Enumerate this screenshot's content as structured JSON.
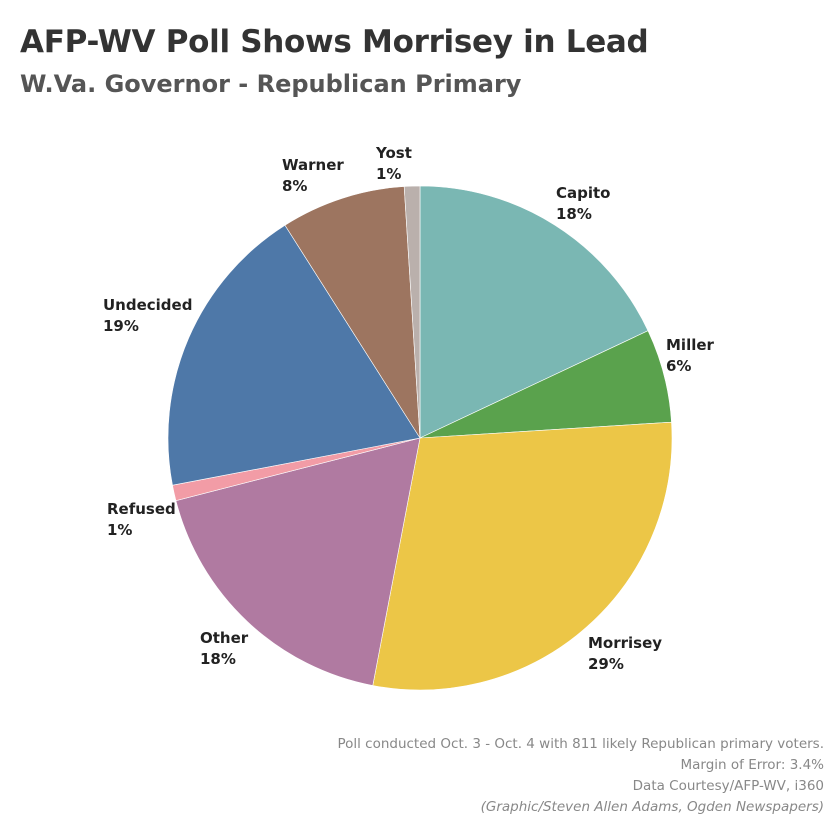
{
  "chart_data": {
    "type": "pie",
    "title": "AFP-WV Poll Shows Morrisey in Lead",
    "subtitle": "W.Va. Governor - Republican Primary",
    "start_angle_deg": 0,
    "direction": "clockwise",
    "slices": [
      {
        "name": "Capito",
        "value": 18,
        "label": "18%",
        "color": "#7ab7b3"
      },
      {
        "name": "Miller",
        "value": 6,
        "label": "6%",
        "color": "#5aa24d"
      },
      {
        "name": "Morrisey",
        "value": 29,
        "label": "29%",
        "color": "#ecc647"
      },
      {
        "name": "Other",
        "value": 18,
        "label": "18%",
        "color": "#b07aa1"
      },
      {
        "name": "Refused",
        "value": 1,
        "label": "1%",
        "color": "#f29ca6"
      },
      {
        "name": "Undecided",
        "value": 19,
        "label": "19%",
        "color": "#4e78a8"
      },
      {
        "name": "Warner",
        "value": 8,
        "label": "8%",
        "color": "#9d7560"
      },
      {
        "name": "Yost",
        "value": 1,
        "label": "1%",
        "color": "#bab0ac"
      }
    ]
  },
  "footnotes": {
    "poll": "Poll conducted Oct. 3 - Oct. 4 with 811 likely Republican primary voters.",
    "margin": "Margin of Error: 3.4%",
    "source": "Data Courtesy/AFP-WV, i360",
    "credit": "(Graphic/Steven Allen Adams, Ogden Newspapers)"
  }
}
